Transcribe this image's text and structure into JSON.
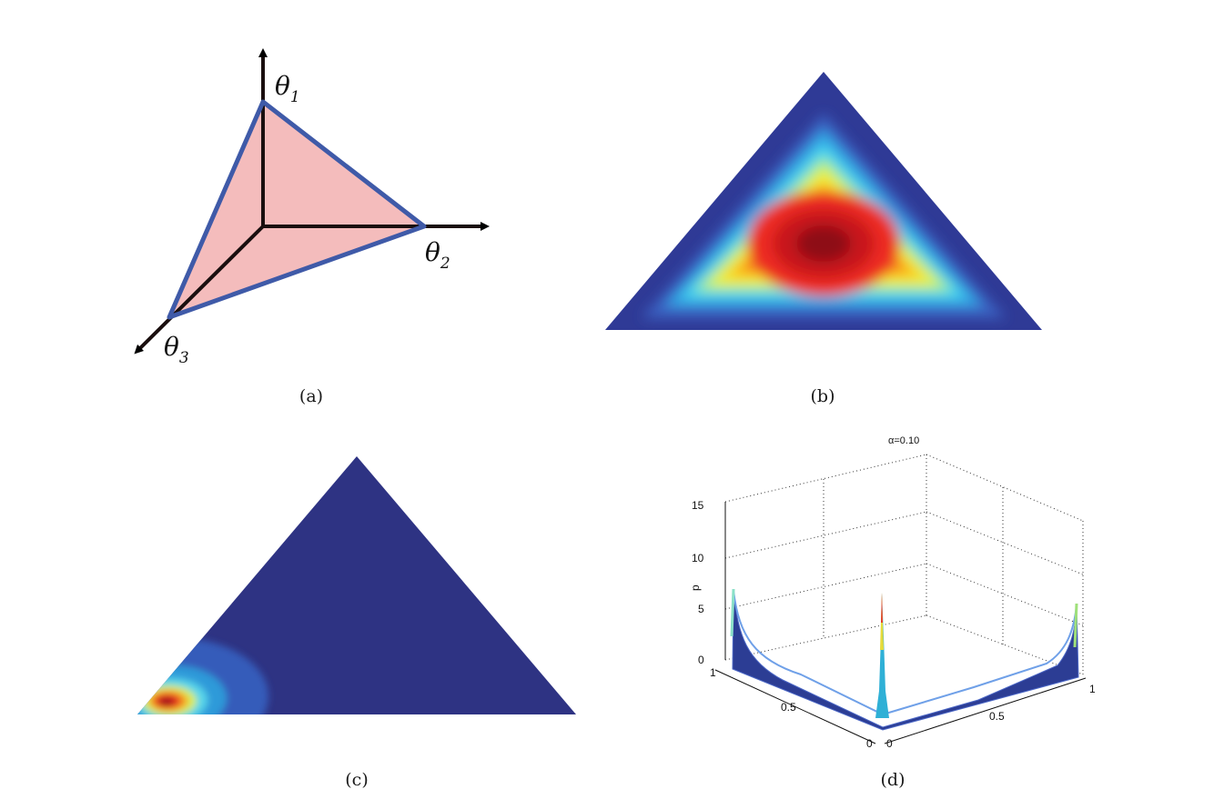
{
  "figure": {
    "panels": [
      {
        "id": "a",
        "caption": "(a)",
        "axes": [
          {
            "symbol": "θ",
            "sub": "1"
          },
          {
            "symbol": "θ",
            "sub": "2"
          },
          {
            "symbol": "θ",
            "sub": "3"
          }
        ],
        "colors": {
          "simplex_fill": "#f4bcbc",
          "simplex_edge": "#3f5aa8",
          "axis": "#000000"
        }
      },
      {
        "id": "b",
        "caption": "(b)",
        "colormap": "jet"
      },
      {
        "id": "c",
        "caption": "(c)",
        "colormap": "jet",
        "background": "#2e3383"
      },
      {
        "id": "d",
        "caption": "(d)",
        "title": "α=0.10",
        "zlabel": "p",
        "z_ticks": [
          "15",
          "10",
          "5",
          "0"
        ],
        "x_ticks": [
          "1",
          "0.5",
          "0"
        ],
        "y_ticks": [
          "0",
          "0.5",
          "1"
        ]
      }
    ]
  }
}
